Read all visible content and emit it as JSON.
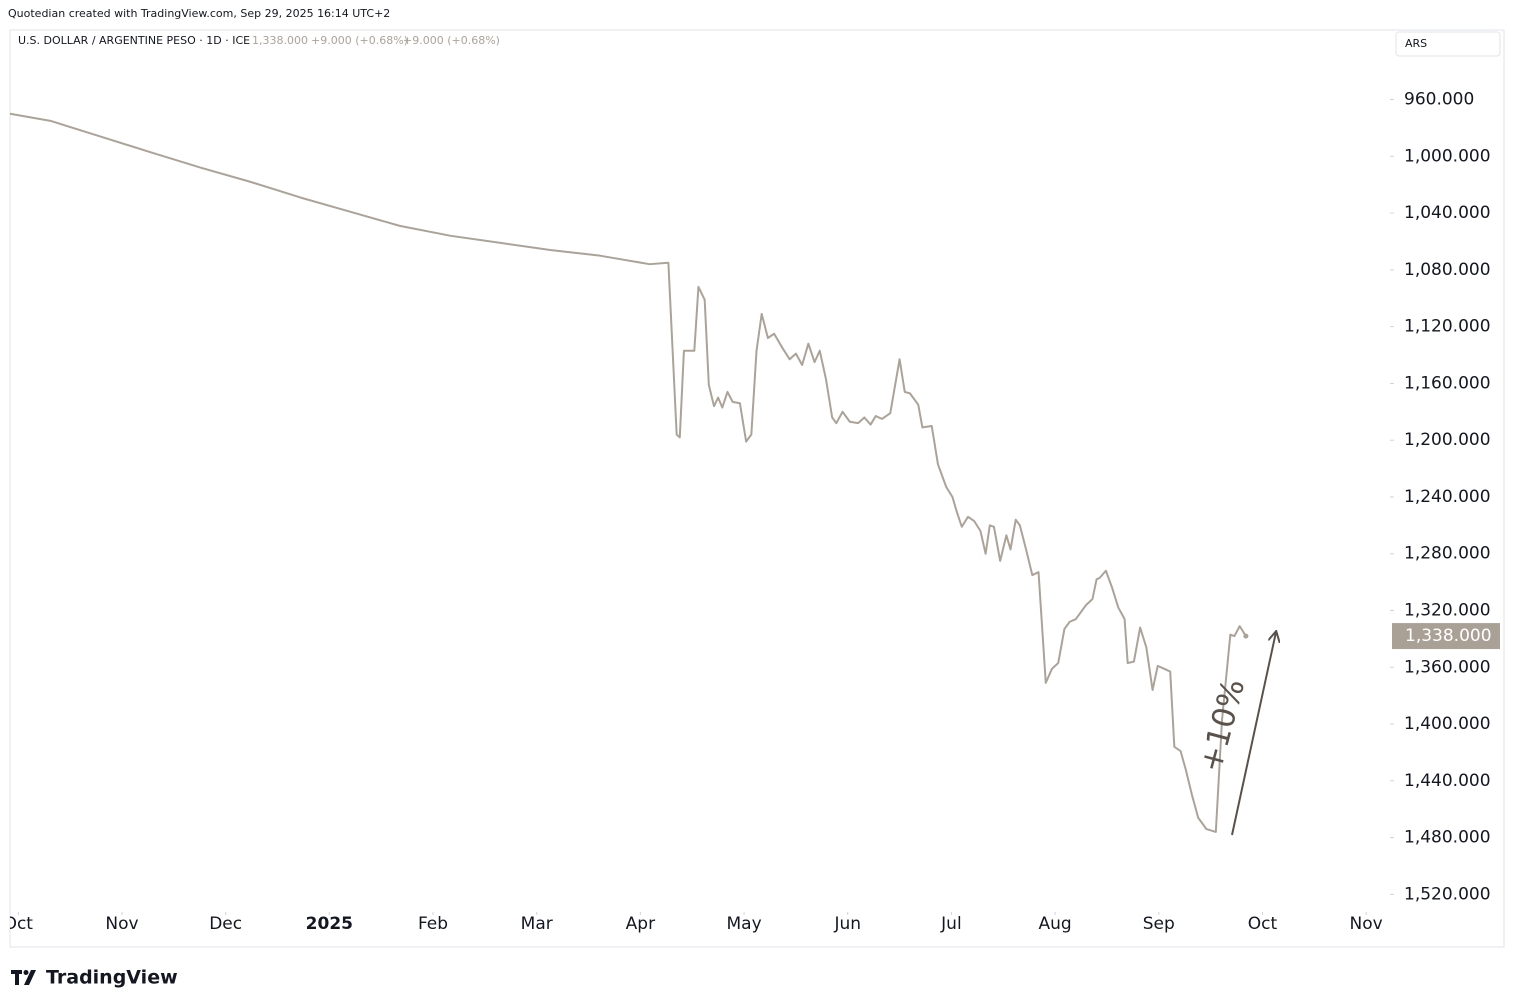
{
  "chart_data": {
    "type": "line",
    "attribution": "Quotedian created with TradingView.com, Sep 29, 2025 16:14 UTC+2",
    "symbol": "U.S. DOLLAR / ARGENTINE PESO · 1D · ICE",
    "header_values": [
      "1,338.000",
      "+9.000 (+0.68%)",
      "+9.000 (+0.68%)"
    ],
    "currency": "ARS",
    "annotation": "+10%",
    "footer_brand": "TradingView",
    "inverted": true,
    "grid": false,
    "xlim": [
      -0.08,
      13.23
    ],
    "xticks": [
      {
        "value": 0,
        "label": "Oct"
      },
      {
        "value": 1,
        "label": "Nov"
      },
      {
        "value": 2,
        "label": "Dec"
      },
      {
        "value": 3,
        "label": "2025"
      },
      {
        "value": 4,
        "label": "Feb"
      },
      {
        "value": 5,
        "label": "Mar"
      },
      {
        "value": 6,
        "label": "Apr"
      },
      {
        "value": 7,
        "label": "May"
      },
      {
        "value": 8,
        "label": "Jun"
      },
      {
        "value": 9,
        "label": "Jul"
      },
      {
        "value": 10,
        "label": "Aug"
      },
      {
        "value": 11,
        "label": "Sep"
      },
      {
        "value": 12,
        "label": "Oct"
      },
      {
        "value": 13,
        "label": "Nov"
      }
    ],
    "ylim": [
      911,
      1531
    ],
    "yticks": [
      {
        "value": 960,
        "label": "960.000"
      },
      {
        "value": 1000,
        "label": "1,000.000"
      },
      {
        "value": 1040,
        "label": "1,040.000"
      },
      {
        "value": 1080,
        "label": "1,080.000"
      },
      {
        "value": 1120,
        "label": "1,120.000"
      },
      {
        "value": 1160,
        "label": "1,160.000"
      },
      {
        "value": 1200,
        "label": "1,200.000"
      },
      {
        "value": 1240,
        "label": "1,240.000"
      },
      {
        "value": 1280,
        "label": "1,280.000"
      },
      {
        "value": 1320,
        "label": "1,320.000"
      },
      {
        "value": 1360,
        "label": "1,360.000"
      },
      {
        "value": 1400,
        "label": "1,400.000"
      },
      {
        "value": 1440,
        "label": "1,440.000"
      },
      {
        "value": 1480,
        "label": "1,480.000"
      },
      {
        "value": 1520,
        "label": "1,520.000"
      }
    ],
    "last_price": {
      "value": 1338,
      "label": "1,338.000"
    },
    "color": "#aca398",
    "badge_color": "#aaa196",
    "x": [
      -0.08,
      0.31,
      0.79,
      1.27,
      1.76,
      2.24,
      2.72,
      3.2,
      3.68,
      4.17,
      4.65,
      5.13,
      5.61,
      6.09,
      6.27,
      6.35,
      6.38,
      6.42,
      6.52,
      6.56,
      6.62,
      6.66,
      6.71,
      6.75,
      6.79,
      6.84,
      6.89,
      6.96,
      7.02,
      7.07,
      7.12,
      7.17,
      7.23,
      7.29,
      7.37,
      7.44,
      7.5,
      7.56,
      7.62,
      7.68,
      7.73,
      7.79,
      7.85,
      7.89,
      7.95,
      8.02,
      8.1,
      8.16,
      8.22,
      8.27,
      8.33,
      8.41,
      8.5,
      8.55,
      8.6,
      8.68,
      8.72,
      8.81,
      8.87,
      8.95,
      9.01,
      9.05,
      9.1,
      9.16,
      9.22,
      9.28,
      9.33,
      9.37,
      9.41,
      9.47,
      9.53,
      9.57,
      9.62,
      9.66,
      9.72,
      9.78,
      9.84,
      9.91,
      9.97,
      10.03,
      10.09,
      10.14,
      10.2,
      10.3,
      10.36,
      10.4,
      10.43,
      10.49,
      10.55,
      10.61,
      10.67,
      10.7,
      10.76,
      10.82,
      10.88,
      10.94,
      10.99,
      11.05,
      11.11,
      11.15,
      11.21,
      11.26,
      11.32,
      11.38,
      11.46,
      11.55,
      11.61,
      11.69,
      11.73,
      11.78,
      11.84
    ],
    "values": [
      970,
      975,
      986,
      997,
      1008,
      1018,
      1029,
      1039,
      1049,
      1056,
      1061,
      1066,
      1070,
      1076,
      1075,
      1196,
      1198,
      1137,
      1137,
      1092,
      1101,
      1161,
      1176,
      1170,
      1177,
      1166,
      1173,
      1174,
      1201,
      1196,
      1137,
      1111,
      1128,
      1125,
      1135,
      1143,
      1139,
      1147,
      1132,
      1145,
      1137,
      1157,
      1184,
      1188,
      1180,
      1187,
      1188,
      1184,
      1189,
      1183,
      1185,
      1181,
      1143,
      1166,
      1167,
      1175,
      1191,
      1190,
      1217,
      1233,
      1240,
      1250,
      1261,
      1254,
      1257,
      1264,
      1280,
      1260,
      1261,
      1285,
      1267,
      1277,
      1256,
      1260,
      1277,
      1295,
      1293,
      1371,
      1361,
      1357,
      1333,
      1328,
      1326,
      1316,
      1312,
      1298,
      1297,
      1292,
      1304,
      1318,
      1326,
      1357,
      1356,
      1332,
      1346,
      1376,
      1359,
      1361,
      1363,
      1416,
      1419,
      1432,
      1450,
      1466,
      1474,
      1476,
      1397,
      1337,
      1338,
      1331,
      1338
    ]
  }
}
